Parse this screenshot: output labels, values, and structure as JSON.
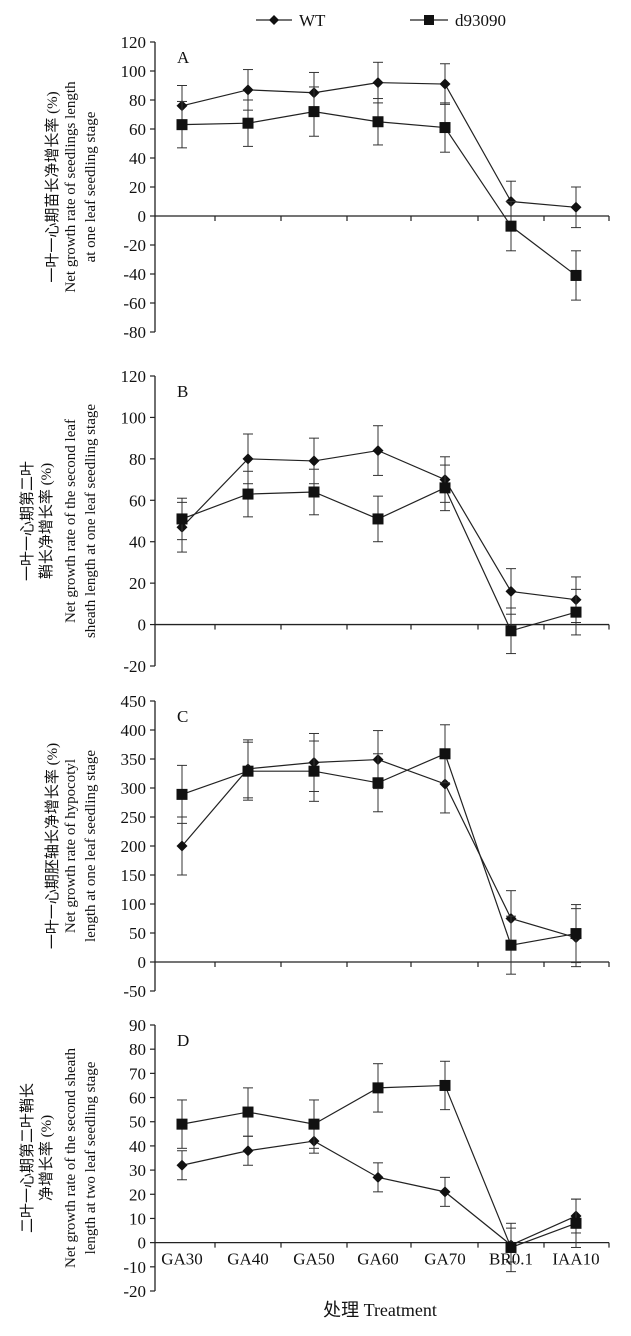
{
  "chart_data": {
    "type": "line",
    "legend": {
      "placement": "top",
      "entries": [
        "WT",
        "d93090"
      ]
    },
    "categories": [
      "GA30",
      "GA40",
      "GA50",
      "GA60",
      "GA70",
      "BR0.1",
      "IAA10"
    ],
    "xlabel": "处理 Treatment",
    "panels": [
      {
        "label": "A",
        "ylabel_cn": "一叶一心期苗长净增长率 (%)",
        "ylabel_en": [
          "Net growth rate of seedlings length",
          "at one leaf seedling stage"
        ],
        "ylim": [
          -80,
          120
        ],
        "yticks": [
          -80,
          -60,
          -40,
          -20,
          0,
          20,
          40,
          60,
          80,
          100,
          120
        ],
        "series": [
          {
            "name": "WT",
            "marker": "diamond",
            "values": [
              76,
              87,
              85,
              92,
              91,
              10,
              6
            ],
            "errors": [
              14,
              14,
              14,
              14,
              14,
              14,
              14
            ]
          },
          {
            "name": "d93090",
            "marker": "square",
            "values": [
              63,
              64,
              72,
              65,
              61,
              -7,
              -41
            ],
            "errors": [
              16,
              16,
              17,
              16,
              17,
              17,
              17
            ]
          }
        ]
      },
      {
        "label": "B",
        "ylabel_cn": [
          "一叶一心期第二叶",
          "鞘长净增长率 (%)"
        ],
        "ylabel_en": [
          "Net growth rate of the second leaf",
          "sheath length at one leaf seedling stage"
        ],
        "ylim": [
          -20,
          120
        ],
        "yticks": [
          -20,
          0,
          20,
          40,
          60,
          80,
          100,
          120
        ],
        "series": [
          {
            "name": "WT",
            "marker": "diamond",
            "values": [
              47,
              80,
              79,
              84,
              70,
              16,
              12
            ],
            "errors": [
              12,
              12,
              11,
              12,
              11,
              11,
              11
            ]
          },
          {
            "name": "d93090",
            "marker": "square",
            "values": [
              51,
              63,
              64,
              51,
              66,
              -3,
              6
            ],
            "errors": [
              10,
              11,
              11,
              11,
              11,
              11,
              11
            ]
          }
        ]
      },
      {
        "label": "C",
        "ylabel_cn": "一叶一心期胚轴长净增长率 (%)",
        "ylabel_en": [
          "Net growth rate of hypocotyl",
          "length at one leaf seedling  stage"
        ],
        "ylim": [
          -50,
          450
        ],
        "yticks": [
          -50,
          0,
          50,
          100,
          150,
          200,
          250,
          300,
          350,
          400,
          450
        ],
        "series": [
          {
            "name": "WT",
            "marker": "diamond",
            "values": [
              200,
              333,
              344,
              349,
              307,
              75,
              42
            ],
            "errors": [
              50,
              50,
              50,
              50,
              50,
              48,
              50
            ]
          },
          {
            "name": "d93090",
            "marker": "square",
            "values": [
              289,
              329,
              329,
              309,
              359,
              29,
              49
            ],
            "errors": [
              50,
              50,
              52,
              50,
              50,
              50,
              50
            ]
          }
        ]
      },
      {
        "label": "D",
        "ylabel_cn": [
          "二叶一心期第二叶鞘长",
          "净增长率 (%)"
        ],
        "ylabel_en": [
          "Net growth rate of the second sheath",
          "length at two leaf seedling stage"
        ],
        "ylim": [
          -20,
          90
        ],
        "yticks": [
          -20,
          -10,
          0,
          10,
          20,
          30,
          40,
          50,
          60,
          70,
          80,
          90
        ],
        "series": [
          {
            "name": "WT",
            "marker": "diamond",
            "values": [
              32,
              38,
              42,
              27,
              21,
              -1,
              11
            ],
            "errors": [
              6,
              6,
              5,
              6,
              6,
              7,
              7
            ]
          },
          {
            "name": "d93090",
            "marker": "square",
            "values": [
              49,
              54,
              49,
              64,
              65,
              -2,
              8
            ],
            "errors": [
              10,
              10,
              10,
              10,
              10,
              10,
              10
            ]
          }
        ]
      }
    ]
  }
}
